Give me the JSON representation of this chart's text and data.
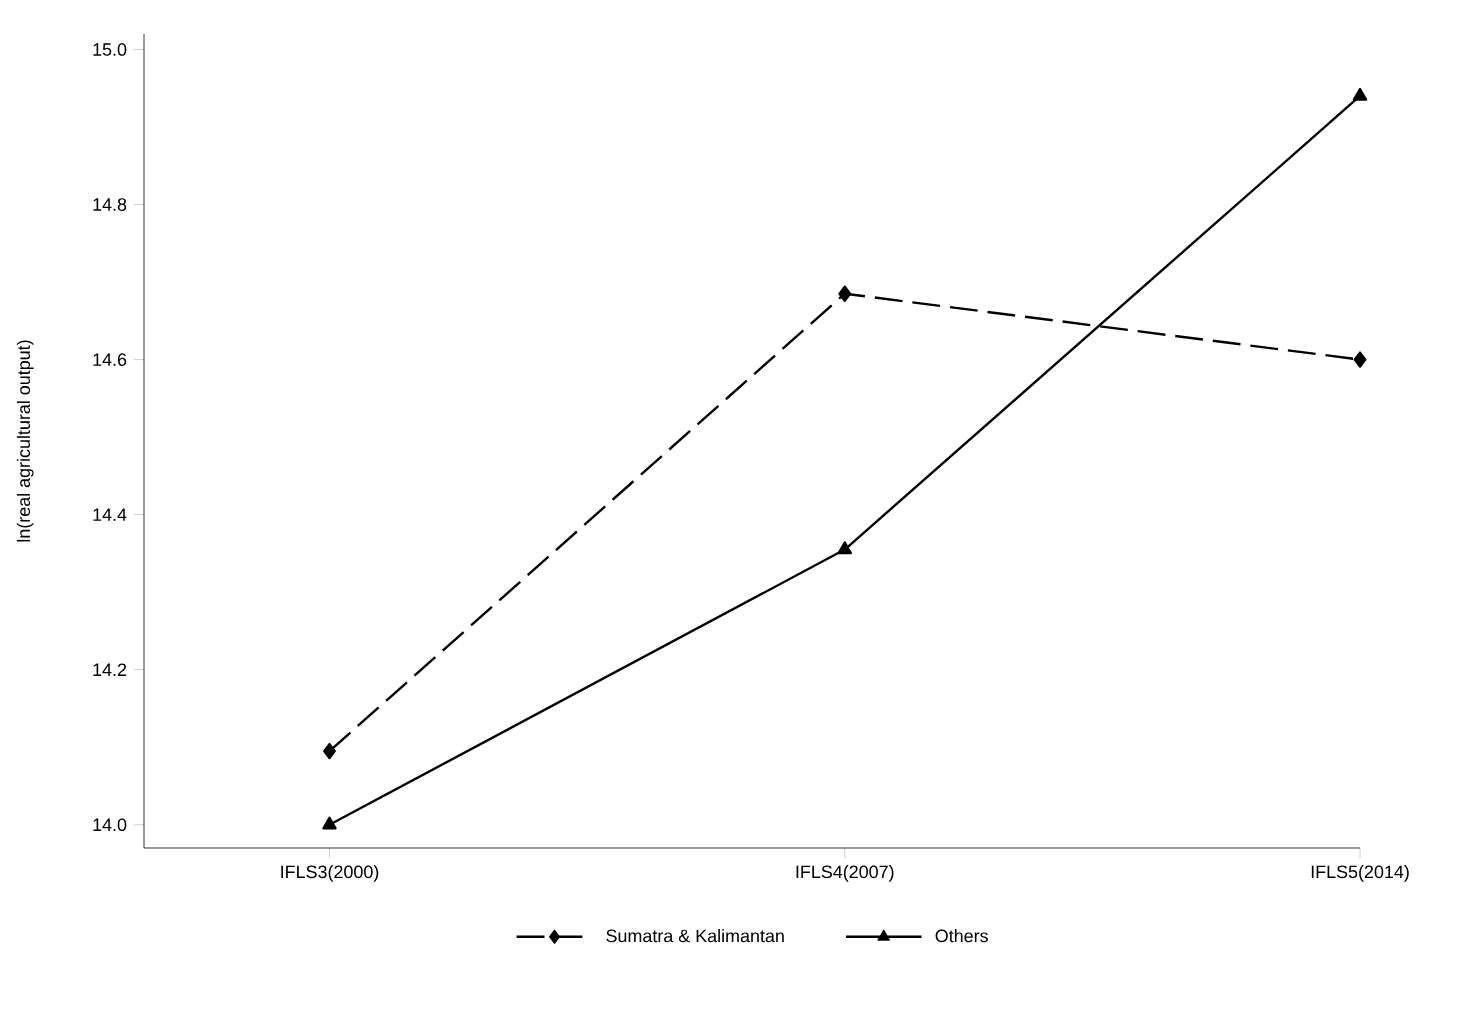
{
  "chart_data": {
    "type": "line",
    "ylabel": "ln(real agricultural output)",
    "categories": [
      "IFLS3(2000)",
      "IFLS4(2007)",
      "IFLS5(2014)"
    ],
    "series": [
      {
        "name": "Sumatra & Kalimantan",
        "color": "#000000",
        "values": [
          14.095,
          14.685,
          14.6
        ],
        "line_style": "dashed",
        "marker": "diamond"
      },
      {
        "name": "Others",
        "color": "#000000",
        "values": [
          14.0,
          14.355,
          14.94
        ],
        "line_style": "solid",
        "marker": "triangle"
      }
    ],
    "ylim": [
      13.97,
      15.02
    ],
    "yticks": [
      {
        "value": 14.0,
        "label": "14.0"
      },
      {
        "value": 14.2,
        "label": "14.2"
      },
      {
        "value": 14.4,
        "label": "14.4"
      },
      {
        "value": 14.6,
        "label": "14.6"
      },
      {
        "value": 14.8,
        "label": "14.8"
      },
      {
        "value": 15.0,
        "label": "15.0"
      }
    ],
    "grid": false,
    "legend": "bottom"
  }
}
